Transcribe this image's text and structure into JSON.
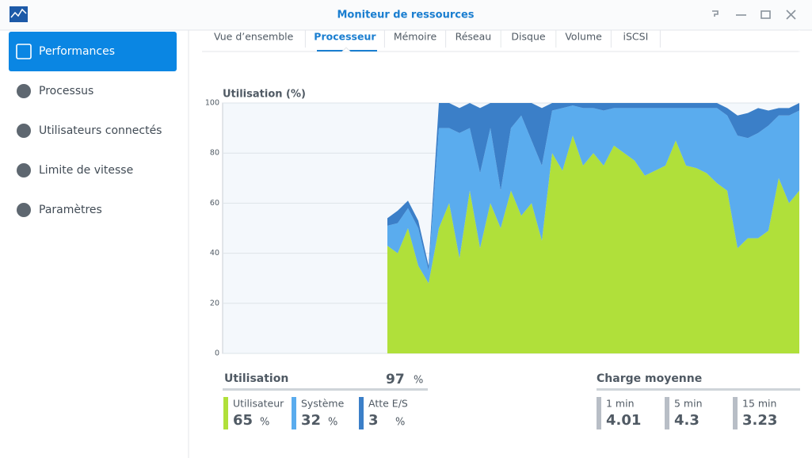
{
  "window": {
    "title": "Moniteur de ressources"
  },
  "sidebar": [
    "Performances",
    "Processus",
    "Utilisateurs connectés",
    "Limite de vitesse",
    "Paramètres"
  ],
  "tabs": [
    "Vue d’ensemble",
    "Processeur",
    "Mémoire",
    "Réseau",
    "Disque",
    "Volume",
    "iSCSI"
  ],
  "chart_data": {
    "type": "stacked-area",
    "title": "Utilisation (%)",
    "ylim": [
      0,
      100
    ],
    "yticks": [
      0,
      20,
      40,
      60,
      80,
      100
    ],
    "grid": true,
    "series": [
      {
        "name": "Utilisateur",
        "color": "#b0e03a",
        "values": [
          null,
          null,
          null,
          null,
          null,
          null,
          null,
          null,
          null,
          null,
          null,
          null,
          null,
          null,
          null,
          null,
          43,
          40,
          50,
          35,
          28,
          50,
          60,
          38,
          65,
          42,
          60,
          50,
          65,
          55,
          60,
          45,
          80,
          73,
          87,
          75,
          80,
          75,
          83,
          80,
          77,
          71,
          73,
          75,
          85,
          75,
          74,
          72,
          68,
          65,
          42,
          46,
          46,
          49,
          70,
          60,
          65
        ]
      },
      {
        "name": "Système",
        "color": "#5aacee",
        "values": [
          null,
          null,
          null,
          null,
          null,
          null,
          null,
          null,
          null,
          null,
          null,
          null,
          null,
          null,
          null,
          null,
          8,
          12,
          8,
          15,
          5,
          40,
          30,
          50,
          25,
          30,
          30,
          15,
          25,
          40,
          25,
          30,
          17,
          25,
          12,
          23,
          18,
          22,
          15,
          18,
          21,
          27,
          25,
          23,
          13,
          23,
          24,
          26,
          30,
          30,
          45,
          40,
          42,
          42,
          25,
          35,
          32
        ]
      },
      {
        "name": "Atte E/S",
        "color": "#3b7fc8",
        "values": [
          null,
          null,
          null,
          null,
          null,
          null,
          null,
          null,
          null,
          null,
          null,
          null,
          null,
          null,
          null,
          null,
          3,
          5,
          3,
          3,
          2,
          10,
          10,
          10,
          10,
          26,
          10,
          35,
          10,
          5,
          15,
          23,
          3,
          2,
          1,
          2,
          2,
          3,
          2,
          2,
          2,
          2,
          2,
          2,
          2,
          2,
          2,
          2,
          2,
          3,
          8,
          10,
          10,
          6,
          3,
          3,
          3
        ]
      }
    ]
  },
  "utilisation": {
    "title": "Utilisation",
    "value": 97,
    "unit": "%",
    "items": [
      {
        "label": "Utilisateur",
        "value": 65,
        "unit": "%"
      },
      {
        "label": "Système",
        "value": 32,
        "unit": "%"
      },
      {
        "label": "Atte E/S",
        "value": 3,
        "unit": "%"
      }
    ]
  },
  "charge": {
    "title": "Charge moyenne",
    "items": [
      {
        "label": "1 min",
        "value": 4.01
      },
      {
        "label": "5 min",
        "value": 4.3
      },
      {
        "label": "15 min",
        "value": 3.23
      }
    ]
  }
}
